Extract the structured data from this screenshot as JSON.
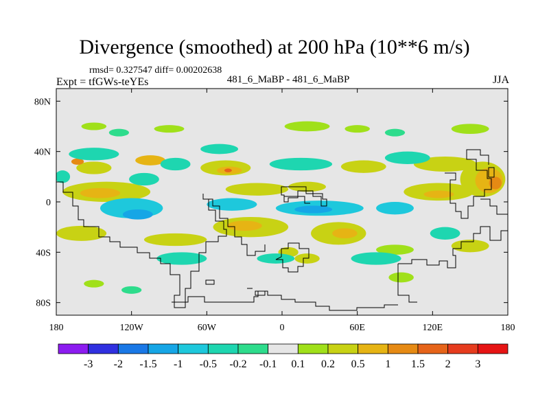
{
  "header": {
    "title": "Divergence (smoothed) at 200 hPa (10**6 m/s)",
    "stats": "rmsd= 0.327547 diff= 0.00202638",
    "experiment": "Expt = tfGWs-teYEs",
    "case": "481_6_MaBP - 481_6_MaBP",
    "season": "JJA"
  },
  "chart_data": {
    "type": "heatmap",
    "title": "Divergence (smoothed) at 200 hPa (10**6 m/s)",
    "x_axis": {
      "range": [
        -180,
        180
      ],
      "ticks": [
        -180,
        -120,
        -60,
        0,
        60,
        120,
        180
      ],
      "tick_labels": [
        "180",
        "120W",
        "60W",
        "0",
        "60E",
        "120E",
        "180"
      ]
    },
    "y_axis": {
      "range": [
        -90,
        90
      ],
      "ticks": [
        80,
        40,
        0,
        -40,
        -80
      ],
      "tick_labels": [
        "80N",
        "40N",
        "0",
        "40S",
        "80S"
      ]
    },
    "colorbar": {
      "levels": [
        "-3",
        "-2",
        "-1.5",
        "-1",
        "-0.5",
        "-0.2",
        "-0.1",
        "0.1",
        "0.2",
        "0.5",
        "1",
        "1.5",
        "2",
        "3"
      ],
      "colors": [
        "#8c1cf0",
        "#3030e0",
        "#1a78e6",
        "#16a6e6",
        "#1ec8dc",
        "#1ed6b0",
        "#2edc8c",
        "#e6e6e6",
        "#a0e01a",
        "#c8d214",
        "#e6b414",
        "#e68a14",
        "#e6641a",
        "#e63c1e",
        "#e61414"
      ]
    },
    "background_color": "#e6e6e6",
    "field_blobs": [
      {
        "lon": -150,
        "lat": 27,
        "rlon": 14,
        "rlat": 5,
        "level": 9
      },
      {
        "lon": -163,
        "lat": 32,
        "rlon": 5,
        "rlat": 2.5,
        "level": 11
      },
      {
        "lon": -105,
        "lat": 33,
        "rlon": 12,
        "rlat": 4,
        "level": 10
      },
      {
        "lon": -45,
        "lat": 27,
        "rlon": 20,
        "rlat": 6,
        "level": 9
      },
      {
        "lon": -42,
        "lat": 25,
        "rlon": 10,
        "rlat": 3,
        "level": 10
      },
      {
        "lon": -43,
        "lat": 25,
        "rlon": 3,
        "rlat": 1.5,
        "level": 12
      },
      {
        "lon": 65,
        "lat": 28,
        "rlon": 18,
        "rlat": 5,
        "level": 9
      },
      {
        "lon": 130,
        "lat": 30,
        "rlon": 25,
        "rlat": 6,
        "level": 9
      },
      {
        "lon": 160,
        "lat": 18,
        "rlon": 18,
        "rlat": 14,
        "level": 9
      },
      {
        "lon": 165,
        "lat": 17,
        "rlon": 11,
        "rlat": 10,
        "level": 10
      },
      {
        "lon": 170,
        "lat": 15,
        "rlon": 5,
        "rlat": 5,
        "level": 11
      },
      {
        "lon": -140,
        "lat": 8,
        "rlon": 35,
        "rlat": 8,
        "level": 9
      },
      {
        "lon": -145,
        "lat": 7,
        "rlon": 16,
        "rlat": 4,
        "level": 10
      },
      {
        "lon": -20,
        "lat": 10,
        "rlon": 25,
        "rlat": 5,
        "level": 9
      },
      {
        "lon": 20,
        "lat": 12,
        "rlon": 15,
        "rlat": 4,
        "level": 9
      },
      {
        "lon": 125,
        "lat": 8,
        "rlon": 28,
        "rlat": 7,
        "level": 9
      },
      {
        "lon": 125,
        "lat": 6,
        "rlon": 12,
        "rlat": 3,
        "level": 10
      },
      {
        "lon": -160,
        "lat": -25,
        "rlon": 20,
        "rlat": 6,
        "level": 9
      },
      {
        "lon": -85,
        "lat": -30,
        "rlon": 25,
        "rlat": 5,
        "level": 9
      },
      {
        "lon": -25,
        "lat": -20,
        "rlon": 30,
        "rlat": 8,
        "level": 9
      },
      {
        "lon": -30,
        "lat": -19,
        "rlon": 14,
        "rlat": 4,
        "level": 10
      },
      {
        "lon": 45,
        "lat": -25,
        "rlon": 22,
        "rlat": 9,
        "level": 9
      },
      {
        "lon": 50,
        "lat": -25,
        "rlon": 10,
        "rlat": 4,
        "level": 10
      },
      {
        "lon": 5,
        "lat": -40,
        "rlon": 8,
        "rlat": 4,
        "level": 9
      },
      {
        "lon": 20,
        "lat": -45,
        "rlon": 10,
        "rlat": 4,
        "level": 9
      },
      {
        "lon": 90,
        "lat": -38,
        "rlon": 15,
        "rlat": 4,
        "level": 8
      },
      {
        "lon": 150,
        "lat": -35,
        "rlon": 15,
        "rlat": 5,
        "level": 9
      },
      {
        "lon": -150,
        "lat": 60,
        "rlon": 10,
        "rlat": 3,
        "level": 8
      },
      {
        "lon": -90,
        "lat": 58,
        "rlon": 12,
        "rlat": 3,
        "level": 8
      },
      {
        "lon": 20,
        "lat": 60,
        "rlon": 18,
        "rlat": 4,
        "level": 8
      },
      {
        "lon": 60,
        "lat": 58,
        "rlon": 10,
        "rlat": 3,
        "level": 8
      },
      {
        "lon": 150,
        "lat": 58,
        "rlon": 15,
        "rlat": 4,
        "level": 8
      },
      {
        "lon": -150,
        "lat": -65,
        "rlon": 8,
        "rlat": 3,
        "level": 8
      },
      {
        "lon": 95,
        "lat": -60,
        "rlon": 10,
        "rlat": 4,
        "level": 8
      },
      {
        "lon": -150,
        "lat": 38,
        "rlon": 20,
        "rlat": 5,
        "level": 5
      },
      {
        "lon": -85,
        "lat": 30,
        "rlon": 12,
        "rlat": 5,
        "level": 5
      },
      {
        "lon": -50,
        "lat": 42,
        "rlon": 15,
        "rlat": 4,
        "level": 5
      },
      {
        "lon": 15,
        "lat": 30,
        "rlon": 25,
        "rlat": 5,
        "level": 5
      },
      {
        "lon": 100,
        "lat": 35,
        "rlon": 18,
        "rlat": 5,
        "level": 5
      },
      {
        "lon": -110,
        "lat": 18,
        "rlon": 12,
        "rlat": 5,
        "level": 5
      },
      {
        "lon": -175,
        "lat": 20,
        "rlon": 6,
        "rlat": 5,
        "level": 5
      },
      {
        "lon": -120,
        "lat": -5,
        "rlon": 25,
        "rlat": 8,
        "level": 4
      },
      {
        "lon": -115,
        "lat": -10,
        "rlon": 12,
        "rlat": 4,
        "level": 3
      },
      {
        "lon": -40,
        "lat": -2,
        "rlon": 20,
        "rlat": 5,
        "level": 4
      },
      {
        "lon": 30,
        "lat": -5,
        "rlon": 35,
        "rlat": 6,
        "level": 4
      },
      {
        "lon": 25,
        "lat": -6,
        "rlon": 15,
        "rlat": 3,
        "level": 3
      },
      {
        "lon": 90,
        "lat": -5,
        "rlon": 15,
        "rlat": 5,
        "level": 4
      },
      {
        "lon": -80,
        "lat": -45,
        "rlon": 20,
        "rlat": 5,
        "level": 5
      },
      {
        "lon": -5,
        "lat": -45,
        "rlon": 15,
        "rlat": 4,
        "level": 5
      },
      {
        "lon": 75,
        "lat": -45,
        "rlon": 20,
        "rlat": 5,
        "level": 5
      },
      {
        "lon": 130,
        "lat": -25,
        "rlon": 12,
        "rlat": 5,
        "level": 5
      },
      {
        "lon": -130,
        "lat": 55,
        "rlon": 8,
        "rlat": 3,
        "level": 6
      },
      {
        "lon": 90,
        "lat": 55,
        "rlon": 8,
        "rlat": 3,
        "level": 6
      },
      {
        "lon": -120,
        "lat": -70,
        "rlon": 8,
        "rlat": 3,
        "level": 6
      }
    ],
    "coastline_source": "continent outlines (stepped, coarse-grid land mask)"
  }
}
